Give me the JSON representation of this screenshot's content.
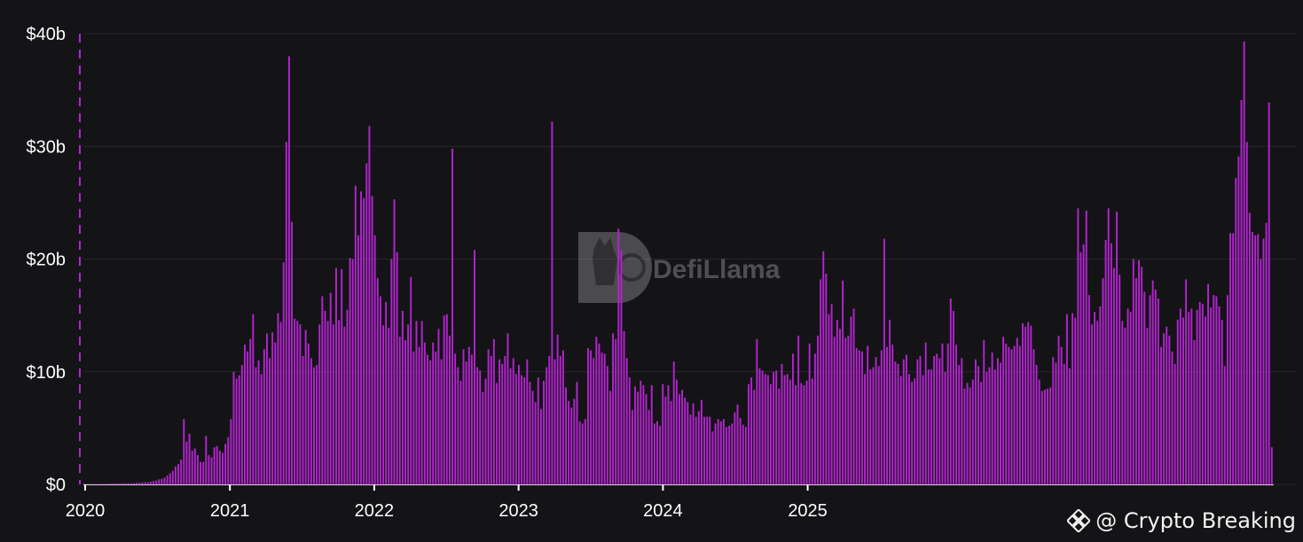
{
  "watermark": {
    "text": "DefiLlama"
  },
  "credit": {
    "text": "@ Crypto Breaking"
  },
  "colors": {
    "bar": "#b324cf",
    "background": "#141417",
    "text": "#ffffff",
    "grid": "#26262b"
  },
  "chart_data": {
    "type": "bar",
    "title": "",
    "xlabel": "",
    "ylabel": "",
    "interval": "weekly",
    "start": "2020-01-01",
    "ylim": [
      0,
      40
    ],
    "y_unit": "billion USD",
    "y_ticks": [
      {
        "value": 0,
        "label": "$0"
      },
      {
        "value": 10,
        "label": "$10b"
      },
      {
        "value": 20,
        "label": "$20b"
      },
      {
        "value": 30,
        "label": "$30b"
      },
      {
        "value": 40,
        "label": "$40b"
      }
    ],
    "x_ticks": [
      "2020",
      "2021",
      "2022",
      "2023",
      "2024",
      "2025"
    ],
    "grid": true,
    "values": [
      0.05,
      0.05,
      0.05,
      0.05,
      0.05,
      0.05,
      0.05,
      0.06,
      0.06,
      0.07,
      0.07,
      0.08,
      0.08,
      0.09,
      0.1,
      0.1,
      0.1,
      0.1,
      0.12,
      0.15,
      0.15,
      0.18,
      0.2,
      0.2,
      0.25,
      0.3,
      0.35,
      0.45,
      0.5,
      0.6,
      0.8,
      1.0,
      1.2,
      1.6,
      1.8,
      2.2,
      5.8,
      3.8,
      4.5,
      3.0,
      3.2,
      2.6,
      2.0,
      2.0,
      4.3,
      2.6,
      2.4,
      3.3,
      3.4,
      3.0,
      2.8,
      3.6,
      4.2,
      5.8,
      10.0,
      9.4,
      9.7,
      10.6,
      12.4,
      11.8,
      12.9,
      15.1,
      10.4,
      11.0,
      9.8,
      12.0,
      13.4,
      11.2,
      13.5,
      12.6,
      15.2,
      14.4,
      19.7,
      30.4,
      38.0,
      23.3,
      14.7,
      14.5,
      14.2,
      11.4,
      13.7,
      12.5,
      11.2,
      10.4,
      10.6,
      14.2,
      16.7,
      15.4,
      14.5,
      17.0,
      14.2,
      19.2,
      14.6,
      19.1,
      14.0,
      15.5,
      20.1,
      20.0,
      26.5,
      22.1,
      26.0,
      25.4,
      28.5,
      31.8,
      25.6,
      22.1,
      18.3,
      16.7,
      14.1,
      16.2,
      13.9,
      20.0,
      25.3,
      20.6,
      13.1,
      15.4,
      12.8,
      14.2,
      18.4,
      11.8,
      14.5,
      12.2,
      14.5,
      12.6,
      11.5,
      11.0,
      12.6,
      11.8,
      13.8,
      11.1,
      15.0,
      15.1,
      13.2,
      29.8,
      11.6,
      10.4,
      9.2,
      12.0,
      10.9,
      12.2,
      11.5,
      20.8,
      10.4,
      10.1,
      8.2,
      9.4,
      12.0,
      11.4,
      12.9,
      9.0,
      11.1,
      10.7,
      11.4,
      13.4,
      10.3,
      11.2,
      9.8,
      10.6,
      9.7,
      9.5,
      11.1,
      9.1,
      8.3,
      7.3,
      9.5,
      6.7,
      9.2,
      10.4,
      11.4,
      32.2,
      11.1,
      13.3,
      11.4,
      11.9,
      8.6,
      7.4,
      6.8,
      7.6,
      9.1,
      5.6,
      5.4,
      5.8,
      12.1,
      11.9,
      11.2,
      13.1,
      12.5,
      11.7,
      11.6,
      10.5,
      8.3,
      13.4,
      12.9,
      22.7,
      20.8,
      13.6,
      11.2,
      9.5,
      6.6,
      8.7,
      8.2,
      9.2,
      8.8,
      8.0,
      6.6,
      8.8,
      5.4,
      5.6,
      5.2,
      8.9,
      7.8,
      8.8,
      7.4,
      10.9,
      9.3,
      8.0,
      8.4,
      7.7,
      7.3,
      6.2,
      7.2,
      6.0,
      6.5,
      7.5,
      6.0,
      6.0,
      6.0,
      4.7,
      5.4,
      5.8,
      5.6,
      5.8,
      5.1,
      5.2,
      5.4,
      6.4,
      7.1,
      5.9,
      5.3,
      5.1,
      8.9,
      9.5,
      8.4,
      12.9,
      10.3,
      10.1,
      9.8,
      9.7,
      8.9,
      10.0,
      10.1,
      8.5,
      10.7,
      9.7,
      9.8,
      9.3,
      11.6,
      8.8,
      13.2,
      9.0,
      8.8,
      9.2,
      12.5,
      9.4,
      11.6,
      13.2,
      18.2,
      20.7,
      18.7,
      15.1,
      16.0,
      13.1,
      14.6,
      13.8,
      18.1,
      13.0,
      13.2,
      14.9,
      15.6,
      12.1,
      11.9,
      11.8,
      9.8,
      12.3,
      10.2,
      10.4,
      11.3,
      10.5,
      11.9,
      21.8,
      12.2,
      14.6,
      12.4,
      10.9,
      10.7,
      9.6,
      11.1,
      11.5,
      9.8,
      9.1,
      9.4,
      11.1,
      11.4,
      9.7,
      12.6,
      10.2,
      10.2,
      11.4,
      11.6,
      11.2,
      12.5,
      10.0,
      12.5,
      16.5,
      15.4,
      12.4,
      10.6,
      11.2,
      8.5,
      9.0,
      8.6,
      9.3,
      11.1,
      10.5,
      9.1,
      12.8,
      10.0,
      10.4,
      11.7,
      10.2,
      11.2,
      10.8,
      13.1,
      12.5,
      12.2,
      12.0,
      12.3,
      13.0,
      12.3,
      14.3,
      14.0,
      14.4,
      14.1,
      12.0,
      10.6,
      9.3,
      8.3,
      8.4,
      8.5,
      8.6,
      11.3,
      10.8,
      13.2,
      12.2,
      10.7,
      15.1,
      10.3,
      15.2,
      14.8,
      24.5,
      20.6,
      21.3,
      24.3,
      16.8,
      14.2,
      15.3,
      14.5,
      15.8,
      18.3,
      21.7,
      24.5,
      21.4,
      19.2,
      24.2,
      18.6,
      14.5,
      13.9,
      15.6,
      15.3,
      20.0,
      18.3,
      19.9,
      19.3,
      17.1,
      13.9,
      16.8,
      18.1,
      17.3,
      16.5,
      12.2,
      13.4,
      14.0,
      13.2,
      11.8,
      10.7,
      14.6,
      15.6,
      14.8,
      18.2,
      15.3,
      15.6,
      12.8,
      15.5,
      16.2,
      16.0,
      14.9,
      17.8,
      15.7,
      16.8,
      16.7,
      15.8,
      14.6,
      10.5,
      16.8,
      22.3,
      22.3,
      27.2,
      29.1,
      34.1,
      39.3,
      30.4,
      24.1,
      22.4,
      22.1,
      22.2,
      20.0,
      21.8,
      23.2,
      33.9,
      3.3
    ]
  }
}
